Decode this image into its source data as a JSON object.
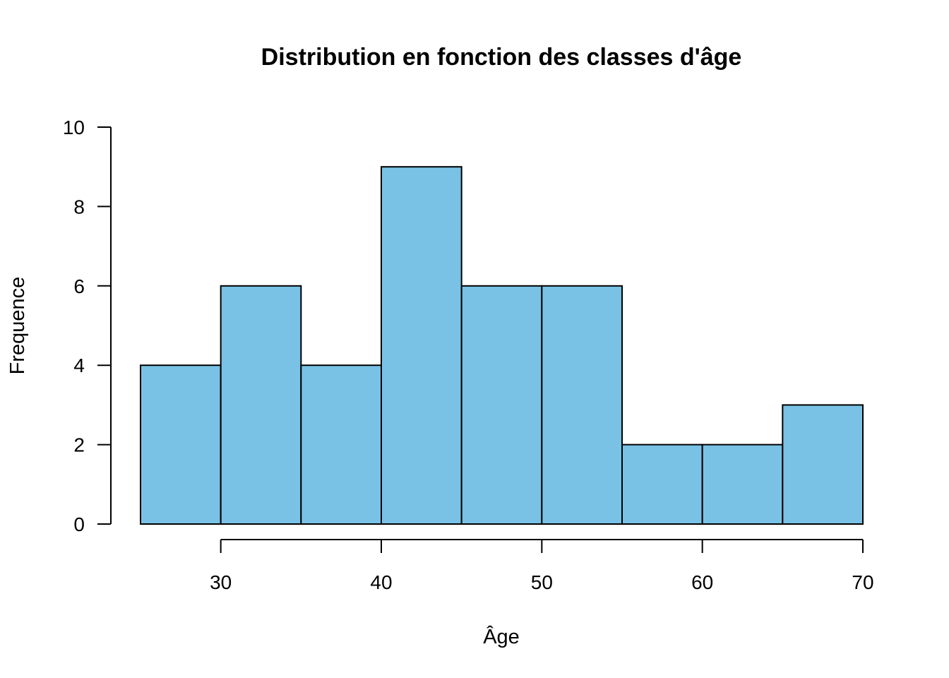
{
  "chart_data": {
    "type": "bar",
    "subtype": "histogram",
    "title": "Distribution en fonction des classes d'âge",
    "xlabel": "Âge",
    "ylabel": "Frequence",
    "bins": [
      {
        "from": 25,
        "to": 30,
        "count": 4
      },
      {
        "from": 30,
        "to": 35,
        "count": 6
      },
      {
        "from": 35,
        "to": 40,
        "count": 4
      },
      {
        "from": 40,
        "to": 45,
        "count": 9
      },
      {
        "from": 45,
        "to": 50,
        "count": 6
      },
      {
        "from": 50,
        "to": 55,
        "count": 6
      },
      {
        "from": 55,
        "to": 60,
        "count": 2
      },
      {
        "from": 60,
        "to": 65,
        "count": 2
      },
      {
        "from": 65,
        "to": 70,
        "count": 3
      }
    ],
    "xticks": [
      30,
      40,
      50,
      60,
      70
    ],
    "yticks": [
      0,
      2,
      4,
      6,
      8,
      10
    ],
    "xlim": [
      25,
      70
    ],
    "ylim": [
      0,
      10
    ],
    "grid": false,
    "bar_color": "#79C2E5",
    "edge_color": "#000000"
  }
}
